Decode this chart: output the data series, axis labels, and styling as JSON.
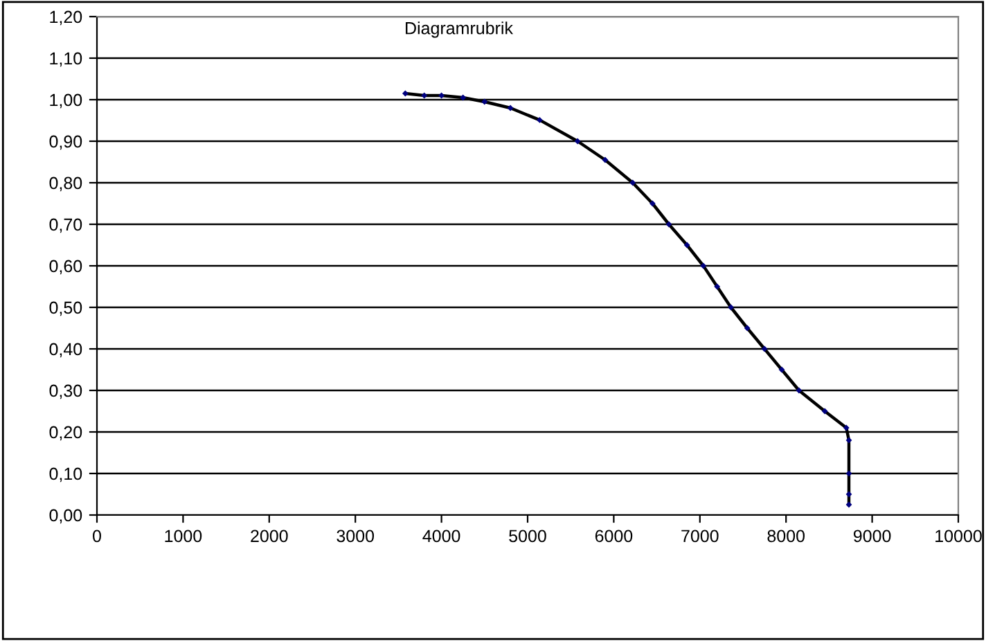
{
  "chart_data": {
    "type": "scatter",
    "title": "Diagramrubrik",
    "series": [
      {
        "color": "#000080",
        "marker": "diamond",
        "x": [
          3580,
          3800,
          4000,
          4250,
          4500,
          4800,
          5140,
          5580,
          5900,
          6220,
          6450,
          6640,
          6850,
          7040,
          7200,
          7360,
          7550,
          7750,
          7950,
          8150,
          8450,
          8700,
          8730,
          8730,
          8730,
          8730
        ],
        "values": [
          1.015,
          1.01,
          1.01,
          1.005,
          0.995,
          0.98,
          0.951,
          0.9,
          0.855,
          0.8,
          0.75,
          0.7,
          0.65,
          0.6,
          0.55,
          0.5,
          0.45,
          0.4,
          0.35,
          0.3,
          0.25,
          0.21,
          0.18,
          0.1,
          0.05,
          0.025
        ]
      },
      {
        "type": "line",
        "color": "#000000",
        "x": [
          3580,
          3800,
          4000,
          4250,
          4500,
          4800,
          5140,
          5580,
          5900,
          6220,
          6450,
          6640,
          6850,
          7040,
          7200,
          7360,
          7550,
          7750,
          7950,
          8150,
          8450,
          8700,
          8730,
          8730,
          8730,
          8730
        ],
        "values": [
          1.015,
          1.01,
          1.01,
          1.005,
          0.995,
          0.98,
          0.951,
          0.9,
          0.855,
          0.8,
          0.75,
          0.7,
          0.65,
          0.6,
          0.55,
          0.5,
          0.45,
          0.4,
          0.35,
          0.3,
          0.25,
          0.21,
          0.18,
          0.1,
          0.05,
          0.025
        ]
      }
    ],
    "xlim": [
      0,
      10000
    ],
    "xticks": [
      0,
      1000,
      2000,
      3000,
      4000,
      5000,
      6000,
      7000,
      8000,
      9000,
      10000
    ],
    "ylim": [
      0,
      1.2
    ],
    "yticks": [
      {
        "value": 0,
        "label": "0,00"
      },
      {
        "value": 0.1,
        "label": "0,10"
      },
      {
        "value": 0.2,
        "label": "0,20"
      },
      {
        "value": 0.3,
        "label": "0,30"
      },
      {
        "value": 0.4,
        "label": "0,40"
      },
      {
        "value": 0.5,
        "label": "0,50"
      },
      {
        "value": 0.6,
        "label": "0,60"
      },
      {
        "value": 0.7,
        "label": "0,70"
      },
      {
        "value": 0.8,
        "label": "0,80"
      },
      {
        "value": 0.9,
        "label": "0,90"
      },
      {
        "value": 1.0,
        "label": "1,00"
      },
      {
        "value": 1.1,
        "label": "1,10"
      },
      {
        "value": 1.2,
        "label": "1,20"
      }
    ],
    "grid": "y"
  }
}
